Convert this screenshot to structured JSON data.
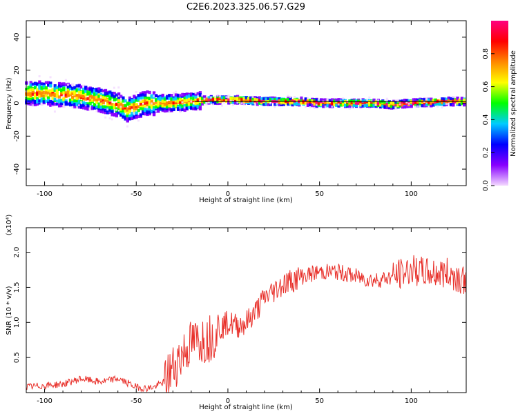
{
  "title": "C2E6.2023.325.06.57.G29",
  "chart_data": [
    {
      "type": "heatmap",
      "xlabel": "Height of straight line (km)",
      "ylabel": "Frequency (Hz)",
      "xlim": [
        -110,
        130
      ],
      "ylim": [
        -50,
        50
      ],
      "xticks": [
        -100,
        -50,
        0,
        50,
        100
      ],
      "yticks": [
        -40,
        -20,
        0,
        20,
        40
      ],
      "colorbar": {
        "label": "Normalized spectral amplitude",
        "range": [
          0.0,
          1.0
        ],
        "ticks": [
          0.0,
          0.2,
          0.4,
          0.6,
          0.8
        ],
        "colors": [
          "#f3d9ff",
          "#8800ff",
          "#0000ff",
          "#00ccff",
          "#00ff00",
          "#ffff00",
          "#ff8800",
          "#ff0000",
          "#ff0080"
        ]
      },
      "ridge": {
        "description_points": [
          {
            "x": -110,
            "y": 6
          },
          {
            "x": -100,
            "y": 6
          },
          {
            "x": -90,
            "y": 5
          },
          {
            "x": -80,
            "y": 4
          },
          {
            "x": -70,
            "y": 2
          },
          {
            "x": -60,
            "y": -1
          },
          {
            "x": -55,
            "y": -4
          },
          {
            "x": -50,
            "y": -2
          },
          {
            "x": -45,
            "y": 0
          },
          {
            "x": -40,
            "y": 0
          },
          {
            "x": -30,
            "y": 0
          },
          {
            "x": -20,
            "y": 1
          },
          {
            "x": -10,
            "y": 2
          },
          {
            "x": 0,
            "y": 2
          },
          {
            "x": 7,
            "y": 2
          },
          {
            "x": 20,
            "y": 1
          },
          {
            "x": 40,
            "y": 1
          },
          {
            "x": 50,
            "y": 0
          },
          {
            "x": 60,
            "y": 0
          },
          {
            "x": 80,
            "y": 0
          },
          {
            "x": 90,
            "y": -1
          },
          {
            "x": 100,
            "y": 0
          },
          {
            "x": 120,
            "y": 1
          },
          {
            "x": 130,
            "y": 1
          }
        ]
      },
      "reference_line": {
        "y_from": 0,
        "y_to": 1,
        "x_from": -18,
        "x_to": 130
      }
    },
    {
      "type": "line",
      "xlabel": "Height of straight line (km)",
      "ylabel": "SNR (10 * v/v)",
      "yscale_label": "(x10⁴)",
      "xlim": [
        -110,
        130
      ],
      "ylim": [
        0,
        2.35
      ],
      "xticks": [
        -100,
        -50,
        0,
        50,
        100
      ],
      "yticks": [
        0.5,
        1.0,
        1.5,
        2.0
      ],
      "ytick_labels": [
        "0.5",
        "1.0",
        "1.5",
        "2.0"
      ],
      "series": [
        {
          "color": "#e8302a",
          "x": [
            -110,
            -100,
            -90,
            -80,
            -70,
            -60,
            -50,
            -45,
            -40,
            -35,
            -30,
            -25,
            -20,
            -15,
            -10,
            -5,
            0,
            5,
            10,
            15,
            20,
            30,
            40,
            50,
            60,
            70,
            80,
            90,
            100,
            110,
            120,
            130
          ],
          "y": [
            0.08,
            0.1,
            0.12,
            0.2,
            0.15,
            0.2,
            0.08,
            0.06,
            0.08,
            0.15,
            0.35,
            0.55,
            0.7,
            0.75,
            0.78,
            0.9,
            1.0,
            0.95,
            1.0,
            1.15,
            1.35,
            1.55,
            1.65,
            1.72,
            1.72,
            1.65,
            1.6,
            1.65,
            1.75,
            1.7,
            1.7,
            1.6
          ]
        }
      ]
    }
  ]
}
